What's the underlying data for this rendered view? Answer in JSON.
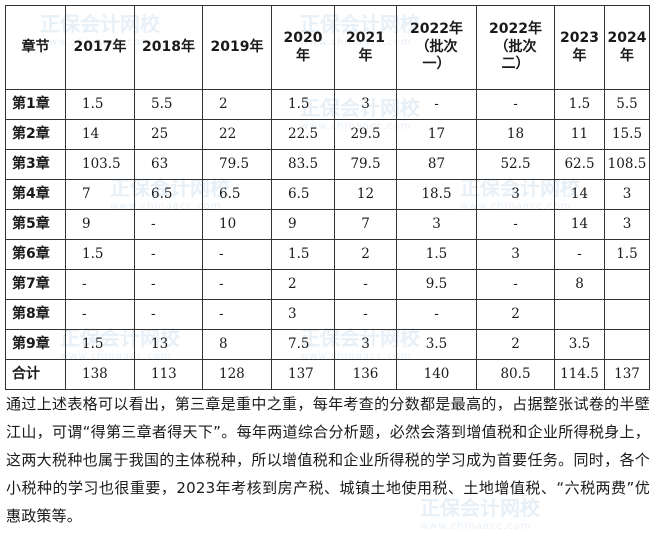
{
  "table": {
    "headers": [
      [
        "章节"
      ],
      [
        "2017年"
      ],
      [
        "2018年"
      ],
      [
        "2019年"
      ],
      [
        "2020",
        "年"
      ],
      [
        "2021",
        "年"
      ],
      [
        "2022年",
        "（批次",
        "一）"
      ],
      [
        "2022年",
        "（批次",
        "二）"
      ],
      [
        "2023",
        "年"
      ],
      [
        "2024",
        "年"
      ]
    ],
    "rows": [
      {
        "chapter": "第1章",
        "cells": [
          "1.5",
          "5.5",
          "2",
          "1.5",
          "3",
          "-",
          "-",
          "1.5",
          "5.5"
        ]
      },
      {
        "chapter": "第2章",
        "cells": [
          "14",
          "25",
          "22",
          "22.5",
          "29.5",
          "17",
          "18",
          "11",
          "15.5"
        ]
      },
      {
        "chapter": "第3章",
        "cells": [
          "103.5",
          "63",
          "79.5",
          "83.5",
          "79.5",
          "87",
          "52.5",
          "62.5",
          "108.5"
        ]
      },
      {
        "chapter": "第4章",
        "cells": [
          "7",
          "6.5",
          "6.5",
          "6.5",
          "12",
          "18.5",
          "3",
          "14",
          "3"
        ]
      },
      {
        "chapter": "第5章",
        "cells": [
          "9",
          "-",
          "10",
          "9",
          "7",
          "3",
          "-",
          "14",
          "3"
        ]
      },
      {
        "chapter": "第6章",
        "cells": [
          "1.5",
          "-",
          "-",
          "1.5",
          "2",
          "1.5",
          "3",
          "-",
          "1.5"
        ]
      },
      {
        "chapter": "第7章",
        "cells": [
          "-",
          "-",
          "-",
          "2",
          "-",
          "9.5",
          "-",
          "8",
          ""
        ]
      },
      {
        "chapter": "第8章",
        "cells": [
          "-",
          "-",
          "-",
          "3",
          "-",
          "-",
          "2",
          "",
          ""
        ]
      },
      {
        "chapter": "第9章",
        "cells": [
          "1.5",
          "13",
          "8",
          "7.5",
          "3",
          "3.5",
          "2",
          "3.5",
          ""
        ]
      },
      {
        "chapter": "合计",
        "cells": [
          "138",
          "113",
          "128",
          "137",
          "136",
          "140",
          "80.5",
          "114.5",
          "137"
        ]
      }
    ]
  },
  "paragraph": "通过上述表格可以看出，第三章是重中之重，每年考查的分数都是最高的，占据整张试卷的半壁江山，可谓“得第三章者得天下”。每年两道综合分析题，必然会落到增值税和企业所得税身上，这两大税种也属于我国的主体税种，所以增值税和企业所得税的学习成为首要任务。同时，各个小税种的学习也很重要，2023年考核到房产税、城镇土地使用税、土地增值税、“六税两费”优惠政策等。",
  "watermark": {
    "text": "正保会计网校",
    "url": "www.chinaacc.com"
  }
}
